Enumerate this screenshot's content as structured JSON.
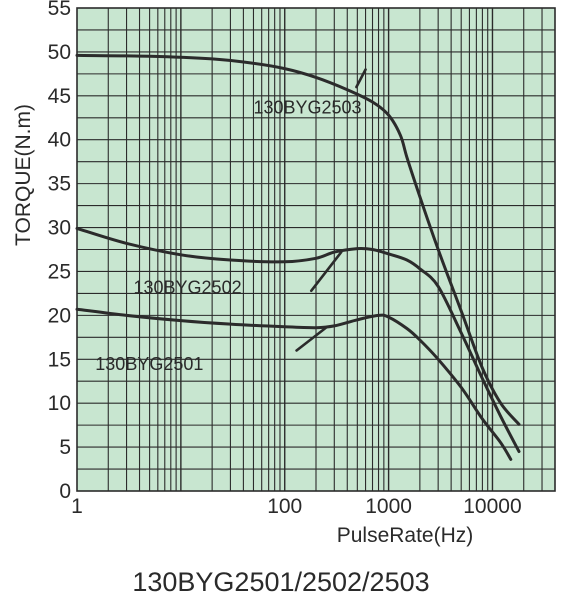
{
  "caption": "130BYG2501/2502/2503",
  "chart_data": {
    "type": "line",
    "title": "",
    "xlabel": "PulseRate(Hz)",
    "ylabel": "TORQUE(N.m)",
    "x_scale": "log",
    "xlim": [
      1,
      40000
    ],
    "ylim": [
      0,
      55
    ],
    "x_ticks": [
      1,
      100,
      1000,
      10000
    ],
    "x_tick_labels": [
      "1",
      "100",
      "1000",
      "10000"
    ],
    "y_ticks": [
      0,
      5,
      10,
      15,
      20,
      25,
      30,
      35,
      40,
      45,
      50,
      55
    ],
    "y_tick_labels": [
      "0",
      "5",
      "10",
      "15",
      "20",
      "25",
      "30",
      "35",
      "40",
      "45",
      "50",
      "55"
    ],
    "grid": true,
    "colors": {
      "plot_bg": "#c8e6d0",
      "grid": "#2b2b2b",
      "line": "#2b2b2b",
      "text": "#2a2a2a"
    },
    "series": [
      {
        "name": "130BYG2503",
        "points": [
          [
            1,
            49.6
          ],
          [
            5,
            49.5
          ],
          [
            20,
            49.2
          ],
          [
            50,
            48.7
          ],
          [
            100,
            48.1
          ],
          [
            200,
            47.1
          ],
          [
            400,
            45.7
          ],
          [
            700,
            44.3
          ],
          [
            1000,
            42.8
          ],
          [
            1300,
            40.5
          ],
          [
            1500,
            38.0
          ],
          [
            2000,
            33.5
          ],
          [
            3000,
            27.5
          ],
          [
            5000,
            20.5
          ],
          [
            8000,
            14.0
          ],
          [
            12000,
            10.0
          ],
          [
            18000,
            7.6
          ]
        ]
      },
      {
        "name": "130BYG2502",
        "points": [
          [
            1,
            29.9
          ],
          [
            3,
            28.2
          ],
          [
            10,
            26.9
          ],
          [
            30,
            26.3
          ],
          [
            100,
            26.1
          ],
          [
            200,
            26.5
          ],
          [
            300,
            27.2
          ],
          [
            500,
            27.6
          ],
          [
            700,
            27.5
          ],
          [
            1000,
            27.0
          ],
          [
            1500,
            26.3
          ],
          [
            2000,
            25.3
          ],
          [
            3000,
            23.3
          ],
          [
            5000,
            18.0
          ],
          [
            8000,
            12.8
          ],
          [
            12000,
            8.5
          ],
          [
            18000,
            4.5
          ]
        ]
      },
      {
        "name": "130BYG2501",
        "points": [
          [
            1,
            20.7
          ],
          [
            3,
            20.0
          ],
          [
            10,
            19.4
          ],
          [
            30,
            19.0
          ],
          [
            100,
            18.7
          ],
          [
            200,
            18.6
          ],
          [
            300,
            18.8
          ],
          [
            500,
            19.5
          ],
          [
            800,
            20.0
          ],
          [
            1000,
            19.8
          ],
          [
            1500,
            18.5
          ],
          [
            2000,
            17.2
          ],
          [
            3000,
            15.0
          ],
          [
            5000,
            11.8
          ],
          [
            8000,
            8.2
          ],
          [
            12000,
            5.5
          ],
          [
            15000,
            3.6
          ]
        ]
      }
    ],
    "annotations": [
      {
        "text": "130BYG2503",
        "series": "130BYG2503",
        "x": 50,
        "y": 43.0,
        "leader_from": [
          490,
          46.0
        ],
        "leader_to": [
          600,
          48.0
        ]
      },
      {
        "text": "130BYG2502",
        "series": "130BYG2502",
        "x": 3.5,
        "y": 22.5,
        "leader_from": [
          180,
          22.8
        ],
        "leader_to": [
          350,
          27.2
        ]
      },
      {
        "text": "130BYG2501",
        "series": "130BYG2501",
        "x": 1.5,
        "y": 13.8,
        "leader_from": [
          130,
          16.0
        ],
        "leader_to": [
          250,
          18.6
        ]
      }
    ]
  }
}
